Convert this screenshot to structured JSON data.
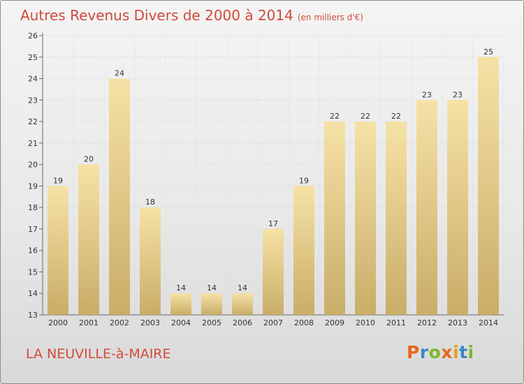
{
  "title": "Autres Revenus Divers de 2000 à 2014",
  "subtitle": "(en milliers d'€)",
  "location": "LA NEUVILLE-à-MAIRE",
  "logo_letters": [
    "P",
    "r",
    "o",
    "x",
    "i",
    "t",
    "i"
  ],
  "colors": {
    "title": "#d04a3a",
    "bar_light": "#f6e2a6",
    "bar_dark": "#c9ad68",
    "logo_orange": "#e8681e",
    "logo_blue": "#3a86c8",
    "logo_green": "#7ab828",
    "logo_yellow": "#e3a01a"
  },
  "chart_data": {
    "type": "bar",
    "title": "Autres Revenus Divers de 2000 à 2014",
    "subtitle": "(en milliers d'€)",
    "categories": [
      "2000",
      "2001",
      "2002",
      "2003",
      "2004",
      "2005",
      "2006",
      "2007",
      "2008",
      "2009",
      "2010",
      "2011",
      "2012",
      "2013",
      "2014"
    ],
    "values": [
      19,
      20,
      24,
      18,
      14,
      14,
      14,
      17,
      19,
      22,
      22,
      22,
      23,
      23,
      25
    ],
    "ylim": [
      13,
      26
    ],
    "yticks": [
      13,
      14,
      15,
      16,
      17,
      18,
      19,
      20,
      21,
      22,
      23,
      24,
      25,
      26
    ],
    "grid": true,
    "data_labels": true
  }
}
